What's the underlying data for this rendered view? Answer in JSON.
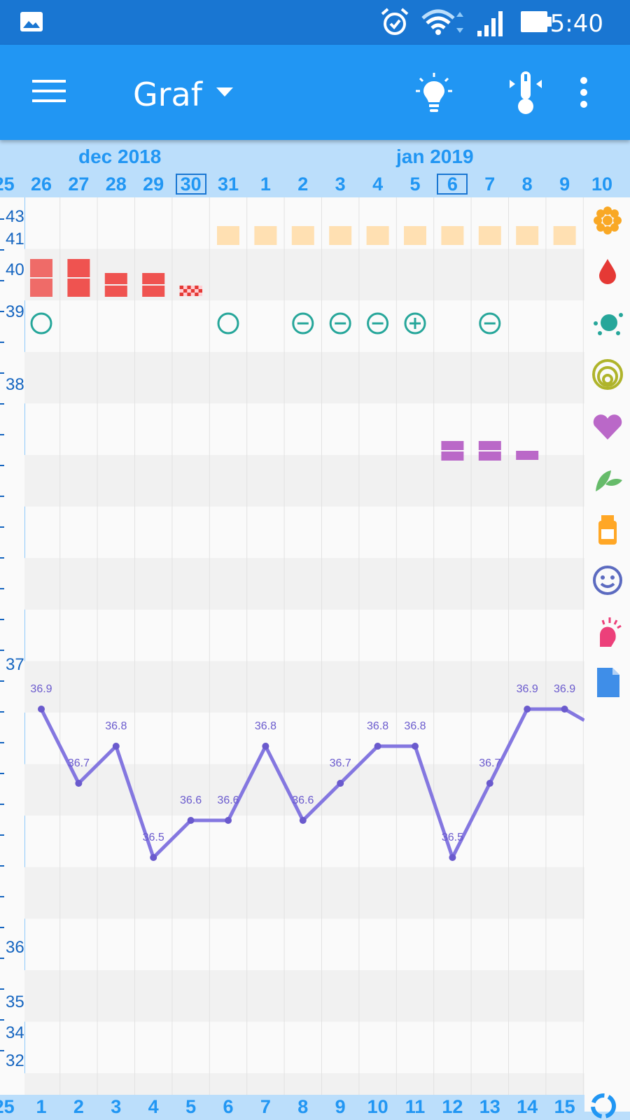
{
  "status_bar": {
    "time": "5:40"
  },
  "app_bar": {
    "title": "Graf"
  },
  "date_header": {
    "months": [
      {
        "label": "dec 2018"
      },
      {
        "label": "jan 2019"
      }
    ],
    "days": [
      "25",
      "26",
      "27",
      "28",
      "29",
      "30",
      "31",
      "1",
      "2",
      "3",
      "4",
      "5",
      "6",
      "7",
      "8",
      "9",
      "10"
    ],
    "today_days": [
      "30",
      "6"
    ]
  },
  "y_axis": {
    "labels": [
      "43",
      "41",
      "40",
      "39",
      "38",
      "37",
      "36",
      "35",
      "34",
      "32"
    ]
  },
  "cycle_days": [
    "25",
    "1",
    "2",
    "3",
    "4",
    "5",
    "6",
    "7",
    "8",
    "9",
    "10",
    "11",
    "12",
    "13",
    "14",
    "15"
  ],
  "chart_data": {
    "type": "line",
    "x": [
      "26",
      "27",
      "28",
      "29",
      "30",
      "31",
      "1",
      "2",
      "3",
      "4",
      "5",
      "6",
      "7",
      "8",
      "9"
    ],
    "series": [
      {
        "values": [
          36.9,
          36.7,
          36.8,
          36.5,
          36.6,
          36.6,
          36.8,
          36.6,
          36.7,
          36.8,
          36.8,
          36.5,
          36.7,
          36.9,
          36.9
        ]
      }
    ],
    "point_labels": [
      "36.9",
      "36.7",
      "36.8",
      "36.5",
      "36.6",
      "36.6",
      "36.8",
      "36.6",
      "36.7",
      "36.8",
      "36.8",
      "36.5",
      "36.7",
      "36.9",
      "36.9"
    ],
    "ylim": [
      32,
      43
    ]
  },
  "side_icons": [
    {
      "name": "flower-icon",
      "color": "#f9a825"
    },
    {
      "name": "drop-icon",
      "color": "#e53935"
    },
    {
      "name": "splash-icon",
      "color": "#26a69a"
    },
    {
      "name": "rings-icon",
      "color": "#afb42b"
    },
    {
      "name": "heart-icon",
      "color": "#ba68c8"
    },
    {
      "name": "leaf-icon",
      "color": "#66bb6a"
    },
    {
      "name": "pill-bottle-icon",
      "color": "#ffa726"
    },
    {
      "name": "smiley-icon",
      "color": "#5c6bc0"
    },
    {
      "name": "pain-icon",
      "color": "#ec407a"
    },
    {
      "name": "note-icon",
      "color": "#3f8ee8"
    }
  ],
  "colors": {
    "menstruation": "#ef5350",
    "cervical": "#ffe0b2",
    "sex_marker": "#26a69a",
    "libido": "#ba68c8",
    "temperature_line": "#8477e0"
  }
}
